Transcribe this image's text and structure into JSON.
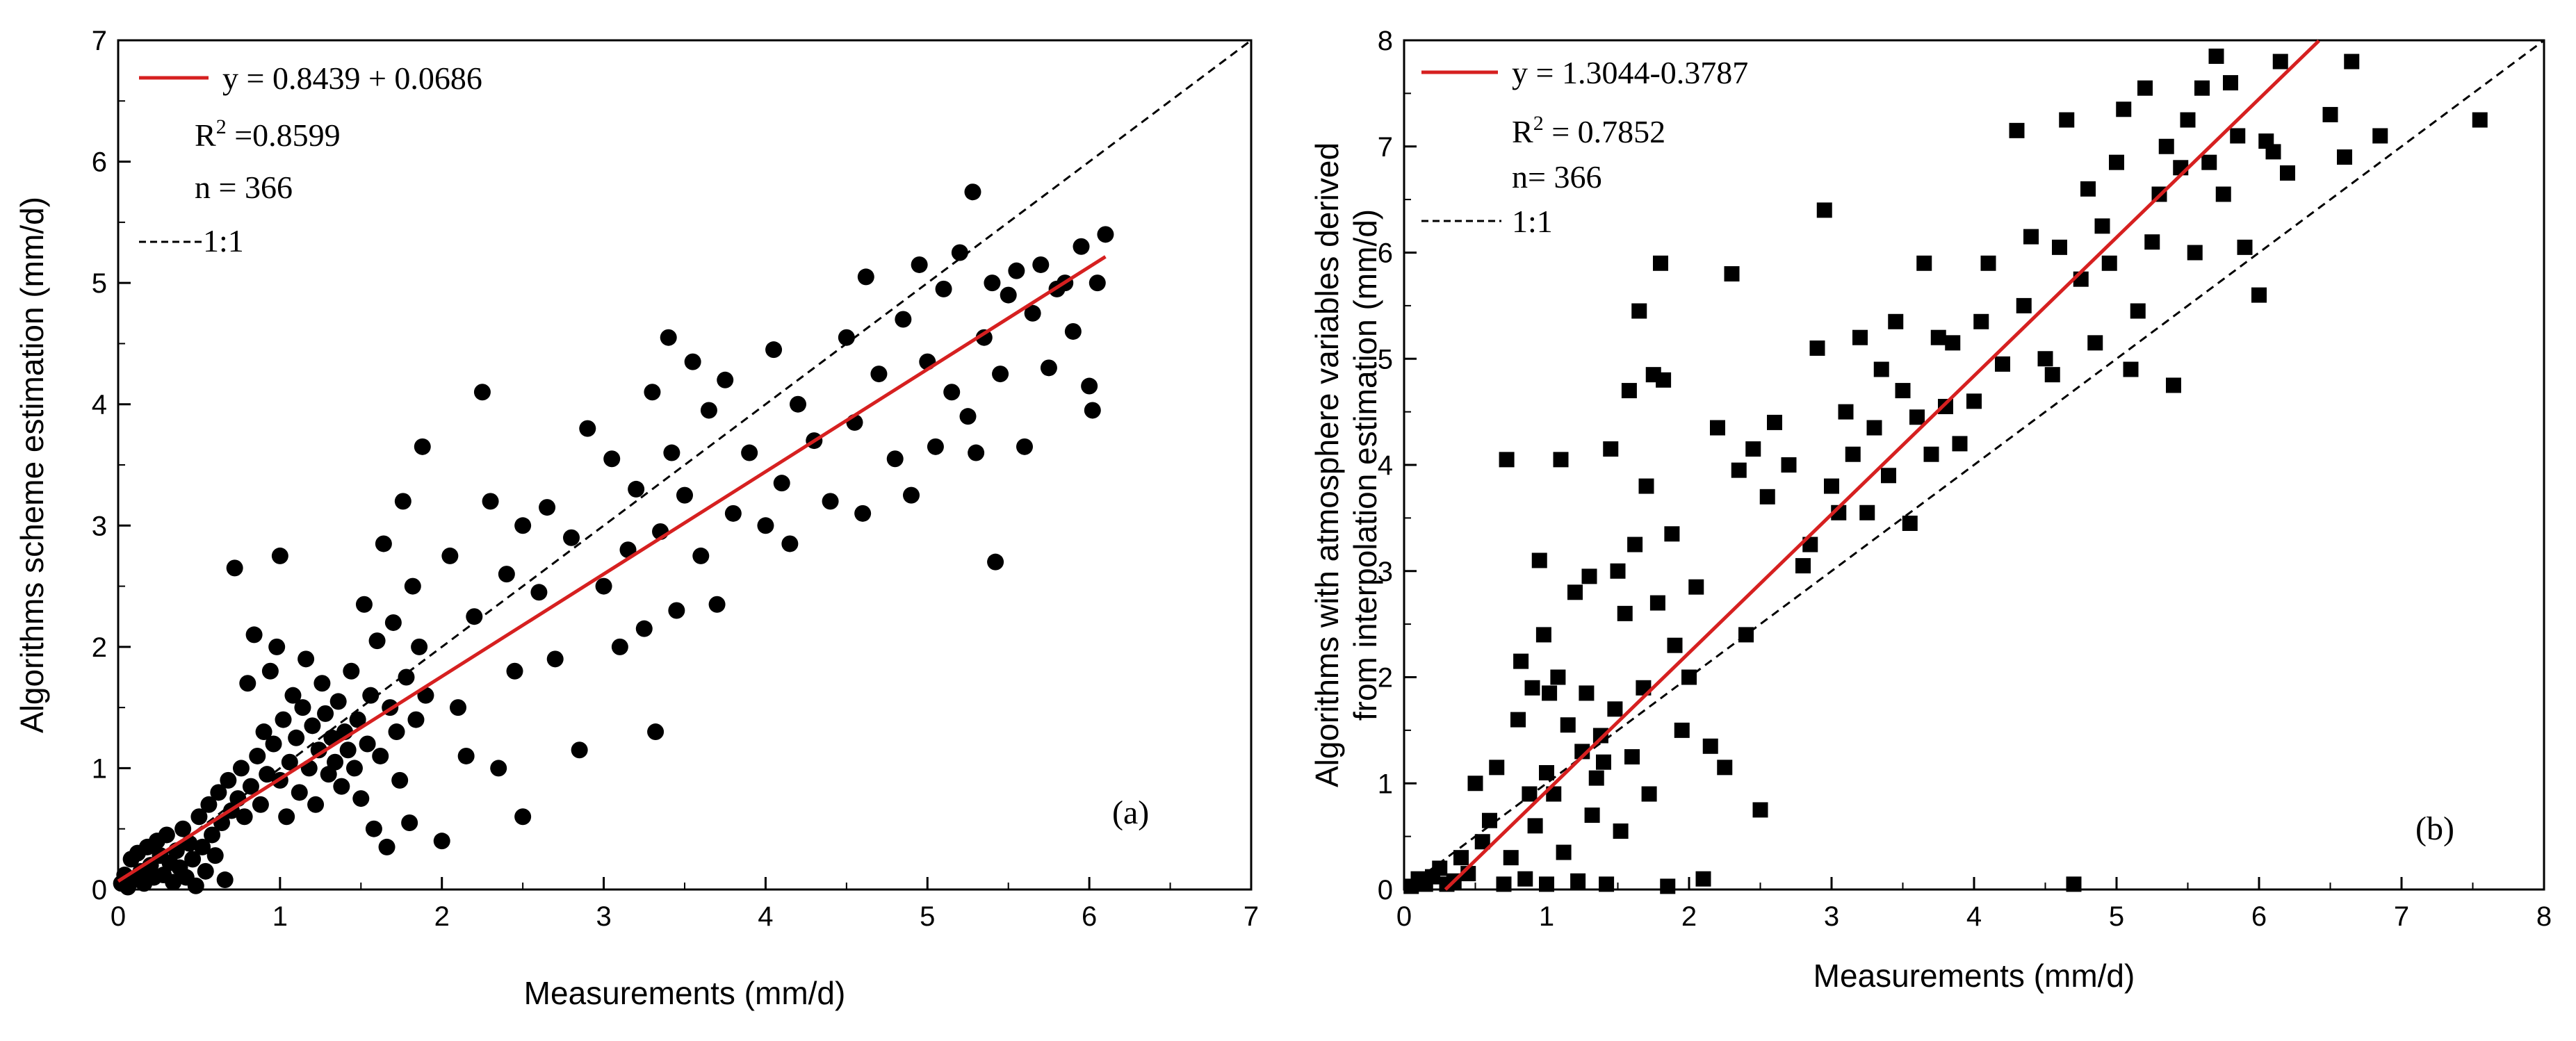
{
  "chart_data": [
    {
      "type": "scatter",
      "panel_label": "(a)",
      "xlabel": "Measurements (mm/d)",
      "ylabel": "Algorithms scheme estimation (mm/d)",
      "xlim": [
        0,
        7
      ],
      "ylim": [
        0,
        7
      ],
      "xticks": [
        0,
        1,
        2,
        3,
        4,
        5,
        6,
        7
      ],
      "yticks": [
        0,
        1,
        2,
        3,
        4,
        5,
        6,
        7
      ],
      "marker": "circle",
      "legend": {
        "placement": "top-left",
        "fit_label": "y = 0.8439 + 0.0686",
        "r2_prefix": "R",
        "r2_sup": "2",
        "r2_value": " =0.8599",
        "n_label": "n = 366",
        "ref_label": "1:1"
      },
      "fit_line": {
        "intercept": 0.0686,
        "slope": 0.8439,
        "x_range": [
          0,
          6.1
        ],
        "color": "#d62020"
      },
      "ref_line": {
        "x_range": [
          0,
          7
        ]
      },
      "points": [
        [
          0.02,
          0.05
        ],
        [
          0.04,
          0.12
        ],
        [
          0.06,
          0.02
        ],
        [
          0.08,
          0.25
        ],
        [
          0.1,
          0.08
        ],
        [
          0.12,
          0.3
        ],
        [
          0.14,
          0.15
        ],
        [
          0.16,
          0.05
        ],
        [
          0.18,
          0.35
        ],
        [
          0.2,
          0.2
        ],
        [
          0.22,
          0.1
        ],
        [
          0.24,
          0.4
        ],
        [
          0.26,
          0.28
        ],
        [
          0.28,
          0.12
        ],
        [
          0.3,
          0.45
        ],
        [
          0.32,
          0.22
        ],
        [
          0.34,
          0.06
        ],
        [
          0.36,
          0.32
        ],
        [
          0.38,
          0.18
        ],
        [
          0.4,
          0.5
        ],
        [
          0.42,
          0.1
        ],
        [
          0.44,
          0.38
        ],
        [
          0.46,
          0.25
        ],
        [
          0.48,
          0.03
        ],
        [
          0.5,
          0.6
        ],
        [
          0.52,
          0.35
        ],
        [
          0.54,
          0.15
        ],
        [
          0.56,
          0.7
        ],
        [
          0.58,
          0.45
        ],
        [
          0.6,
          0.28
        ],
        [
          0.62,
          0.8
        ],
        [
          0.64,
          0.55
        ],
        [
          0.66,
          0.08
        ],
        [
          0.68,
          0.9
        ],
        [
          0.7,
          0.65
        ],
        [
          0.72,
          2.65
        ],
        [
          0.74,
          0.75
        ],
        [
          0.76,
          1.0
        ],
        [
          0.78,
          0.6
        ],
        [
          0.8,
          1.7
        ],
        [
          0.82,
          0.85
        ],
        [
          0.84,
          2.1
        ],
        [
          0.86,
          1.1
        ],
        [
          0.88,
          0.7
        ],
        [
          0.9,
          1.3
        ],
        [
          0.92,
          0.95
        ],
        [
          0.94,
          1.8
        ],
        [
          0.96,
          1.2
        ],
        [
          0.98,
          2.0
        ],
        [
          1.0,
          0.9
        ],
        [
          1.0,
          2.75
        ],
        [
          1.02,
          1.4
        ],
        [
          1.04,
          0.6
        ],
        [
          1.06,
          1.05
        ],
        [
          1.08,
          1.6
        ],
        [
          1.1,
          1.25
        ],
        [
          1.12,
          0.8
        ],
        [
          1.14,
          1.5
        ],
        [
          1.16,
          1.9
        ],
        [
          1.18,
          1.0
        ],
        [
          1.2,
          1.35
        ],
        [
          1.22,
          0.7
        ],
        [
          1.24,
          1.15
        ],
        [
          1.26,
          1.7
        ],
        [
          1.28,
          1.45
        ],
        [
          1.3,
          0.95
        ],
        [
          1.32,
          1.25
        ],
        [
          1.34,
          1.05
        ],
        [
          1.36,
          1.55
        ],
        [
          1.38,
          0.85
        ],
        [
          1.4,
          1.3
        ],
        [
          1.42,
          1.15
        ],
        [
          1.44,
          1.8
        ],
        [
          1.46,
          1.0
        ],
        [
          1.48,
          1.4
        ],
        [
          1.5,
          0.75
        ],
        [
          1.52,
          2.35
        ],
        [
          1.54,
          1.2
        ],
        [
          1.56,
          1.6
        ],
        [
          1.58,
          0.5
        ],
        [
          1.6,
          2.05
        ],
        [
          1.62,
          1.1
        ],
        [
          1.64,
          2.85
        ],
        [
          1.66,
          0.35
        ],
        [
          1.68,
          1.5
        ],
        [
          1.7,
          2.2
        ],
        [
          1.72,
          1.3
        ],
        [
          1.74,
          0.9
        ],
        [
          1.76,
          3.2
        ],
        [
          1.78,
          1.75
        ],
        [
          1.8,
          0.55
        ],
        [
          1.82,
          2.5
        ],
        [
          1.84,
          1.4
        ],
        [
          1.86,
          2.0
        ],
        [
          1.88,
          3.65
        ],
        [
          1.9,
          1.6
        ],
        [
          2.0,
          0.4
        ],
        [
          2.05,
          2.75
        ],
        [
          2.1,
          1.5
        ],
        [
          2.15,
          1.1
        ],
        [
          2.2,
          2.25
        ],
        [
          2.25,
          4.1
        ],
        [
          2.3,
          3.2
        ],
        [
          2.35,
          1.0
        ],
        [
          2.4,
          2.6
        ],
        [
          2.45,
          1.8
        ],
        [
          2.5,
          3.0
        ],
        [
          2.5,
          0.6
        ],
        [
          2.6,
          2.45
        ],
        [
          2.65,
          3.15
        ],
        [
          2.7,
          1.9
        ],
        [
          2.8,
          2.9
        ],
        [
          2.85,
          1.15
        ],
        [
          2.9,
          3.8
        ],
        [
          3.0,
          2.5
        ],
        [
          3.05,
          3.55
        ],
        [
          3.1,
          2.0
        ],
        [
          3.15,
          2.8
        ],
        [
          3.2,
          3.3
        ],
        [
          3.25,
          2.15
        ],
        [
          3.3,
          4.1
        ],
        [
          3.32,
          1.3
        ],
        [
          3.35,
          2.95
        ],
        [
          3.4,
          4.55
        ],
        [
          3.42,
          3.6
        ],
        [
          3.45,
          2.3
        ],
        [
          3.5,
          3.25
        ],
        [
          3.55,
          4.35
        ],
        [
          3.6,
          2.75
        ],
        [
          3.65,
          3.95
        ],
        [
          3.7,
          2.35
        ],
        [
          3.75,
          4.2
        ],
        [
          3.8,
          3.1
        ],
        [
          3.9,
          3.6
        ],
        [
          4.0,
          3.0
        ],
        [
          4.05,
          4.45
        ],
        [
          4.1,
          3.35
        ],
        [
          4.15,
          2.85
        ],
        [
          4.2,
          4.0
        ],
        [
          4.3,
          3.7
        ],
        [
          4.4,
          3.2
        ],
        [
          4.5,
          4.55
        ],
        [
          4.55,
          3.85
        ],
        [
          4.6,
          3.1
        ],
        [
          4.62,
          5.05
        ],
        [
          4.7,
          4.25
        ],
        [
          4.8,
          3.55
        ],
        [
          4.85,
          4.7
        ],
        [
          4.9,
          3.25
        ],
        [
          4.95,
          5.15
        ],
        [
          5.0,
          4.35
        ],
        [
          5.05,
          3.65
        ],
        [
          5.1,
          4.95
        ],
        [
          5.15,
          4.1
        ],
        [
          5.2,
          5.25
        ],
        [
          5.25,
          3.9
        ],
        [
          5.28,
          5.75
        ],
        [
          5.3,
          3.6
        ],
        [
          5.35,
          4.55
        ],
        [
          5.4,
          5.0
        ],
        [
          5.42,
          2.7
        ],
        [
          5.45,
          4.25
        ],
        [
          5.5,
          4.9
        ],
        [
          5.55,
          5.1
        ],
        [
          5.6,
          3.65
        ],
        [
          5.65,
          4.75
        ],
        [
          5.7,
          5.15
        ],
        [
          5.75,
          4.3
        ],
        [
          5.8,
          4.95
        ],
        [
          5.85,
          5.0
        ],
        [
          5.9,
          4.6
        ],
        [
          5.95,
          5.3
        ],
        [
          6.0,
          4.15
        ],
        [
          6.02,
          3.95
        ],
        [
          6.05,
          5.0
        ],
        [
          6.1,
          5.4
        ]
      ]
    },
    {
      "type": "scatter",
      "panel_label": "(b)",
      "xlabel": "Measurements (mm/d)",
      "ylabel": "Algorithms with atmosphere variables derived",
      "ylabel_line2": "from interpolation estimation (mm/d)",
      "xlim": [
        0,
        8
      ],
      "ylim": [
        0,
        8
      ],
      "xticks": [
        0,
        1,
        2,
        3,
        4,
        5,
        6,
        7,
        8
      ],
      "yticks": [
        0,
        1,
        2,
        3,
        4,
        5,
        6,
        7,
        8
      ],
      "marker": "square",
      "legend": {
        "placement": "top-left",
        "fit_label": "y = 1.3044-0.3787",
        "r2_prefix": "R",
        "r2_sup": "2",
        "r2_value": " = 0.7852",
        "n_label": "n= 366",
        "ref_label": "1:1"
      },
      "fit_line": {
        "intercept": -0.3787,
        "slope": 1.3044,
        "x_range": [
          0.29,
          6.42
        ],
        "color": "#d62020"
      },
      "ref_line": {
        "x_range": [
          0,
          8
        ]
      },
      "points": [
        [
          0.05,
          0.03
        ],
        [
          0.1,
          0.1
        ],
        [
          0.15,
          0.05
        ],
        [
          0.2,
          0.12
        ],
        [
          0.25,
          0.2
        ],
        [
          0.3,
          0.05
        ],
        [
          0.35,
          0.08
        ],
        [
          0.4,
          0.3
        ],
        [
          0.45,
          0.15
        ],
        [
          0.5,
          1.0
        ],
        [
          0.55,
          0.45
        ],
        [
          0.6,
          0.65
        ],
        [
          0.65,
          1.15
        ],
        [
          0.7,
          0.05
        ],
        [
          0.72,
          4.05
        ],
        [
          0.75,
          0.3
        ],
        [
          0.8,
          1.6
        ],
        [
          0.82,
          2.15
        ],
        [
          0.85,
          0.1
        ],
        [
          0.88,
          0.9
        ],
        [
          0.9,
          1.9
        ],
        [
          0.92,
          0.6
        ],
        [
          0.95,
          3.1
        ],
        [
          0.98,
          2.4
        ],
        [
          1.0,
          1.1
        ],
        [
          1.0,
          0.05
        ],
        [
          1.02,
          1.85
        ],
        [
          1.05,
          0.9
        ],
        [
          1.08,
          2.0
        ],
        [
          1.1,
          4.05
        ],
        [
          1.12,
          0.35
        ],
        [
          1.15,
          1.55
        ],
        [
          1.2,
          2.8
        ],
        [
          1.22,
          0.08
        ],
        [
          1.25,
          1.3
        ],
        [
          1.28,
          1.85
        ],
        [
          1.3,
          2.95
        ],
        [
          1.32,
          0.7
        ],
        [
          1.35,
          1.05
        ],
        [
          1.38,
          1.45
        ],
        [
          1.4,
          1.2
        ],
        [
          1.42,
          0.05
        ],
        [
          1.45,
          4.15
        ],
        [
          1.48,
          1.7
        ],
        [
          1.5,
          3.0
        ],
        [
          1.52,
          0.55
        ],
        [
          1.55,
          2.6
        ],
        [
          1.58,
          4.7
        ],
        [
          1.6,
          1.25
        ],
        [
          1.62,
          3.25
        ],
        [
          1.65,
          5.45
        ],
        [
          1.68,
          1.9
        ],
        [
          1.7,
          3.8
        ],
        [
          1.72,
          0.9
        ],
        [
          1.75,
          4.85
        ],
        [
          1.78,
          2.7
        ],
        [
          1.8,
          5.9
        ],
        [
          1.82,
          4.8
        ],
        [
          1.85,
          0.03
        ],
        [
          1.88,
          3.35
        ],
        [
          1.9,
          2.3
        ],
        [
          1.95,
          1.5
        ],
        [
          2.0,
          2.0
        ],
        [
          2.05,
          2.85
        ],
        [
          2.1,
          0.1
        ],
        [
          2.15,
          1.35
        ],
        [
          2.2,
          4.35
        ],
        [
          2.25,
          1.15
        ],
        [
          2.3,
          5.8
        ],
        [
          2.35,
          3.95
        ],
        [
          2.4,
          2.4
        ],
        [
          2.45,
          4.15
        ],
        [
          2.5,
          0.75
        ],
        [
          2.55,
          3.7
        ],
        [
          2.6,
          4.4
        ],
        [
          2.7,
          4.0
        ],
        [
          2.8,
          3.05
        ],
        [
          2.85,
          3.25
        ],
        [
          2.9,
          5.1
        ],
        [
          2.95,
          6.4
        ],
        [
          3.0,
          3.8
        ],
        [
          3.05,
          3.55
        ],
        [
          3.1,
          4.5
        ],
        [
          3.15,
          4.1
        ],
        [
          3.2,
          5.2
        ],
        [
          3.25,
          3.55
        ],
        [
          3.3,
          4.35
        ],
        [
          3.35,
          4.9
        ],
        [
          3.4,
          3.9
        ],
        [
          3.45,
          5.35
        ],
        [
          3.5,
          4.7
        ],
        [
          3.55,
          3.45
        ],
        [
          3.6,
          4.45
        ],
        [
          3.65,
          5.9
        ],
        [
          3.7,
          4.1
        ],
        [
          3.75,
          5.2
        ],
        [
          3.8,
          4.55
        ],
        [
          3.85,
          5.15
        ],
        [
          3.9,
          4.2
        ],
        [
          4.0,
          4.6
        ],
        [
          4.05,
          5.35
        ],
        [
          4.1,
          5.9
        ],
        [
          4.2,
          4.95
        ],
        [
          4.3,
          7.15
        ],
        [
          4.35,
          5.5
        ],
        [
          4.4,
          6.15
        ],
        [
          4.5,
          5.0
        ],
        [
          4.55,
          4.85
        ],
        [
          4.6,
          6.05
        ],
        [
          4.65,
          7.25
        ],
        [
          4.7,
          0.05
        ],
        [
          4.75,
          5.75
        ],
        [
          4.8,
          6.6
        ],
        [
          4.85,
          5.15
        ],
        [
          4.9,
          6.25
        ],
        [
          4.95,
          5.9
        ],
        [
          5.0,
          6.85
        ],
        [
          5.05,
          7.35
        ],
        [
          5.1,
          4.9
        ],
        [
          5.15,
          5.45
        ],
        [
          5.2,
          7.55
        ],
        [
          5.25,
          6.1
        ],
        [
          5.3,
          6.55
        ],
        [
          5.35,
          7.0
        ],
        [
          5.4,
          4.75
        ],
        [
          5.45,
          6.8
        ],
        [
          5.5,
          7.25
        ],
        [
          5.55,
          6.0
        ],
        [
          5.6,
          7.55
        ],
        [
          5.65,
          6.85
        ],
        [
          5.7,
          7.85
        ],
        [
          5.75,
          6.55
        ],
        [
          5.8,
          7.6
        ],
        [
          5.85,
          7.1
        ],
        [
          5.9,
          6.05
        ],
        [
          6.0,
          5.6
        ],
        [
          6.05,
          7.05
        ],
        [
          6.1,
          6.95
        ],
        [
          6.15,
          7.8
        ],
        [
          6.2,
          6.75
        ],
        [
          6.5,
          7.3
        ],
        [
          6.6,
          6.9
        ],
        [
          6.65,
          7.8
        ],
        [
          6.85,
          7.1
        ],
        [
          7.55,
          7.25
        ]
      ]
    }
  ]
}
